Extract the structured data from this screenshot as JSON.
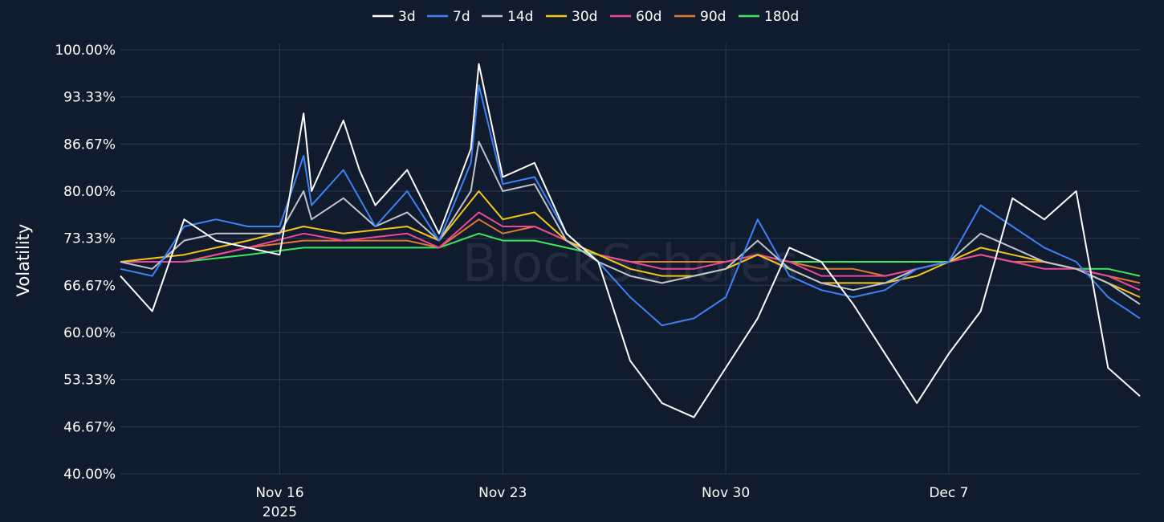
{
  "chart_data": {
    "type": "line",
    "ylabel": "Volatility",
    "xlabel": "",
    "watermark": "BlockScholes",
    "legend_position": "top-center",
    "grid": true,
    "ylim": [
      40,
      100
    ],
    "y_ticks": [
      "40.00%",
      "46.67%",
      "53.33%",
      "60.00%",
      "66.67%",
      "73.33%",
      "80.00%",
      "86.67%",
      "93.33%",
      "100.00%"
    ],
    "y_tick_values": [
      40,
      46.67,
      53.33,
      60,
      66.67,
      73.33,
      80,
      86.67,
      93.33,
      100
    ],
    "xlim": [
      "2025-11-11",
      "2025-12-13"
    ],
    "x_ticks": [
      {
        "date": "2025-11-16",
        "label": "Nov 16",
        "sublabel": "2025"
      },
      {
        "date": "2025-11-23",
        "label": "Nov 23",
        "sublabel": ""
      },
      {
        "date": "2025-11-30",
        "label": "Nov 30",
        "sublabel": ""
      },
      {
        "date": "2025-12-07",
        "label": "Dec 7",
        "sublabel": ""
      }
    ],
    "colors": {
      "background": "#111b2e",
      "grid": "#2a3a57",
      "3d": "#ffffff",
      "7d": "#3b82f6",
      "14d": "#c0c4cc",
      "30d": "#f5c518",
      "60d": "#ec4899",
      "90d": "#e07a2e",
      "180d": "#3de65c"
    },
    "series": [
      {
        "name": "3d",
        "x": [
          "2025-11-11",
          "2025-11-12",
          "2025-11-13",
          "2025-11-14",
          "2025-11-15",
          "2025-11-16",
          "2025-11-16T18",
          "2025-11-17",
          "2025-11-18",
          "2025-11-18T12",
          "2025-11-19",
          "2025-11-20",
          "2025-11-21",
          "2025-11-22",
          "2025-11-22T06",
          "2025-11-23",
          "2025-11-24",
          "2025-11-25",
          "2025-11-26",
          "2025-11-27",
          "2025-11-28",
          "2025-11-29",
          "2025-11-30",
          "2025-12-01",
          "2025-12-02",
          "2025-12-03",
          "2025-12-04",
          "2025-12-05",
          "2025-12-06",
          "2025-12-07",
          "2025-12-08",
          "2025-12-09",
          "2025-12-10",
          "2025-12-11",
          "2025-12-12",
          "2025-12-13"
        ],
        "values": [
          68,
          63,
          76,
          73,
          72,
          71,
          91,
          80,
          90,
          83,
          78,
          83,
          74,
          86,
          98,
          82,
          84,
          74,
          70,
          56,
          50,
          48,
          55,
          62,
          72,
          70,
          64,
          57,
          50,
          57,
          63,
          79,
          76,
          80,
          55,
          51
        ]
      },
      {
        "name": "7d",
        "x": [
          "2025-11-11",
          "2025-11-12",
          "2025-11-13",
          "2025-11-14",
          "2025-11-15",
          "2025-11-16",
          "2025-11-16T18",
          "2025-11-17",
          "2025-11-18",
          "2025-11-19",
          "2025-11-20",
          "2025-11-21",
          "2025-11-22",
          "2025-11-22T06",
          "2025-11-23",
          "2025-11-24",
          "2025-11-25",
          "2025-11-26",
          "2025-11-27",
          "2025-11-28",
          "2025-11-29",
          "2025-11-30",
          "2025-12-01",
          "2025-12-02",
          "2025-12-03",
          "2025-12-04",
          "2025-12-05",
          "2025-12-06",
          "2025-12-07",
          "2025-12-08",
          "2025-12-09",
          "2025-12-10",
          "2025-12-11",
          "2025-12-12",
          "2025-12-13"
        ],
        "values": [
          69,
          68,
          75,
          76,
          75,
          75,
          85,
          78,
          83,
          75,
          80,
          73,
          84,
          95,
          81,
          82,
          74,
          70,
          65,
          61,
          62,
          65,
          76,
          68,
          66,
          65,
          66,
          69,
          70,
          78,
          75,
          72,
          70,
          65,
          62
        ]
      },
      {
        "name": "14d",
        "x": [
          "2025-11-11",
          "2025-11-12",
          "2025-11-13",
          "2025-11-14",
          "2025-11-15",
          "2025-11-16",
          "2025-11-16T18",
          "2025-11-17",
          "2025-11-18",
          "2025-11-19",
          "2025-11-20",
          "2025-11-21",
          "2025-11-22",
          "2025-11-22T06",
          "2025-11-23",
          "2025-11-24",
          "2025-11-25",
          "2025-11-26",
          "2025-11-27",
          "2025-11-28",
          "2025-11-29",
          "2025-11-30",
          "2025-12-01",
          "2025-12-02",
          "2025-12-03",
          "2025-12-04",
          "2025-12-05",
          "2025-12-06",
          "2025-12-07",
          "2025-12-08",
          "2025-12-09",
          "2025-12-10",
          "2025-12-11",
          "2025-12-12",
          "2025-12-13"
        ],
        "values": [
          70,
          69,
          73,
          74,
          74,
          74,
          80,
          76,
          79,
          75,
          77,
          73,
          80,
          87,
          80,
          81,
          73,
          70,
          68,
          67,
          68,
          69,
          73,
          69,
          67,
          66,
          67,
          69,
          70,
          74,
          72,
          70,
          69,
          67,
          64
        ]
      },
      {
        "name": "30d",
        "x": [
          "2025-11-11",
          "2025-11-13",
          "2025-11-15",
          "2025-11-16T18",
          "2025-11-18",
          "2025-11-20",
          "2025-11-21",
          "2025-11-22T06",
          "2025-11-23",
          "2025-11-24",
          "2025-11-25",
          "2025-11-26",
          "2025-11-27",
          "2025-11-28",
          "2025-11-29",
          "2025-11-30",
          "2025-12-01",
          "2025-12-02",
          "2025-12-03",
          "2025-12-04",
          "2025-12-05",
          "2025-12-06",
          "2025-12-07",
          "2025-12-08",
          "2025-12-09",
          "2025-12-10",
          "2025-12-11",
          "2025-12-12",
          "2025-12-13"
        ],
        "values": [
          70,
          71,
          73,
          75,
          74,
          75,
          73,
          80,
          76,
          77,
          73,
          71,
          69,
          68,
          68,
          69,
          71,
          69,
          67,
          67,
          67,
          68,
          70,
          72,
          71,
          70,
          69,
          67,
          65
        ]
      },
      {
        "name": "60d",
        "x": [
          "2025-11-11",
          "2025-11-13",
          "2025-11-15",
          "2025-11-16T18",
          "2025-11-18",
          "2025-11-20",
          "2025-11-21",
          "2025-11-22T06",
          "2025-11-23",
          "2025-11-24",
          "2025-11-25",
          "2025-11-26",
          "2025-11-27",
          "2025-11-28",
          "2025-11-29",
          "2025-11-30",
          "2025-12-01",
          "2025-12-02",
          "2025-12-03",
          "2025-12-04",
          "2025-12-05",
          "2025-12-06",
          "2025-12-07",
          "2025-12-08",
          "2025-12-09",
          "2025-12-10",
          "2025-12-11",
          "2025-12-12",
          "2025-12-13"
        ],
        "values": [
          70,
          70,
          72,
          74,
          73,
          74,
          72,
          77,
          75,
          75,
          73,
          71,
          70,
          69,
          69,
          70,
          71,
          70,
          68,
          68,
          68,
          69,
          70,
          71,
          70,
          69,
          69,
          68,
          66
        ]
      },
      {
        "name": "90d",
        "x": [
          "2025-11-11",
          "2025-11-13",
          "2025-11-15",
          "2025-11-16T18",
          "2025-11-18",
          "2025-11-20",
          "2025-11-21",
          "2025-11-22T06",
          "2025-11-23",
          "2025-11-24",
          "2025-11-25",
          "2025-11-26",
          "2025-11-27",
          "2025-11-28",
          "2025-11-29",
          "2025-11-30",
          "2025-12-01",
          "2025-12-02",
          "2025-12-03",
          "2025-12-04",
          "2025-12-05",
          "2025-12-06",
          "2025-12-07",
          "2025-12-08",
          "2025-12-09",
          "2025-12-10",
          "2025-12-11",
          "2025-12-12",
          "2025-12-13"
        ],
        "values": [
          70,
          70,
          72,
          73,
          73,
          73,
          72,
          76,
          74,
          75,
          73,
          71,
          70,
          70,
          70,
          70,
          71,
          70,
          69,
          69,
          68,
          69,
          70,
          71,
          70,
          70,
          69,
          68,
          67
        ]
      },
      {
        "name": "180d",
        "x": [
          "2025-11-11",
          "2025-11-13",
          "2025-11-15",
          "2025-11-16T18",
          "2025-11-18",
          "2025-11-20",
          "2025-11-21",
          "2025-11-22T06",
          "2025-11-23",
          "2025-11-24",
          "2025-11-25",
          "2025-11-26",
          "2025-11-27",
          "2025-11-28",
          "2025-11-29",
          "2025-11-30",
          "2025-12-01",
          "2025-12-02",
          "2025-12-03",
          "2025-12-04",
          "2025-12-05",
          "2025-12-06",
          "2025-12-07",
          "2025-12-08",
          "2025-12-09",
          "2025-12-10",
          "2025-12-11",
          "2025-12-12",
          "2025-12-13"
        ],
        "values": [
          70,
          70,
          71,
          72,
          72,
          72,
          72,
          74,
          73,
          73,
          72,
          71,
          70,
          70,
          70,
          70,
          71,
          70,
          70,
          70,
          70,
          70,
          70,
          71,
          70,
          70,
          69,
          69,
          68
        ]
      }
    ]
  }
}
